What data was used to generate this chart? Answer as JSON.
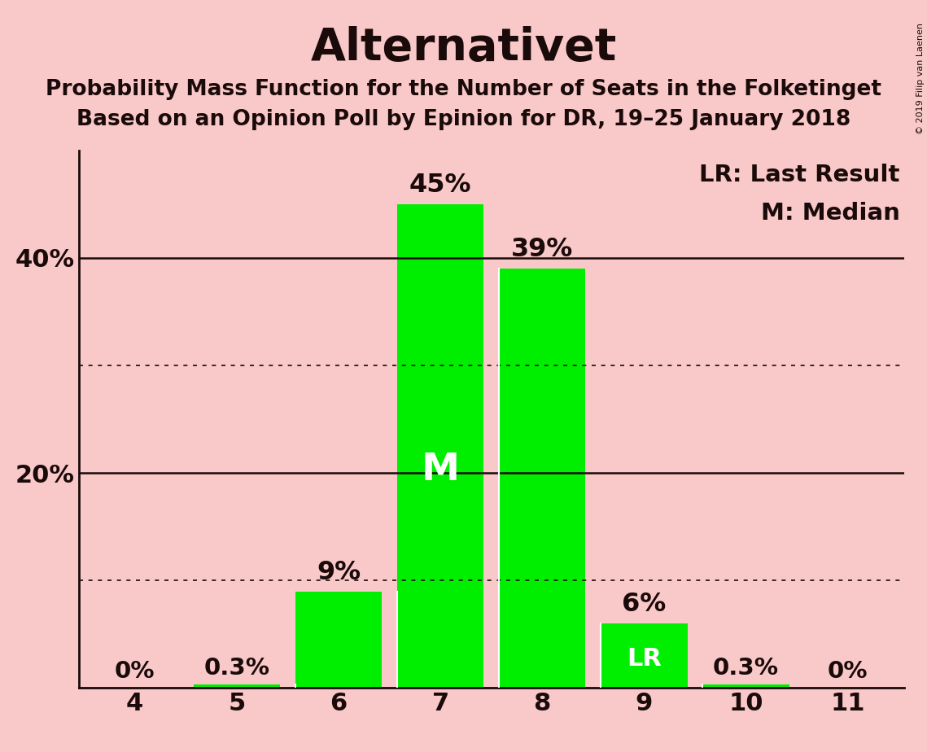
{
  "title": "Alternativet",
  "subtitle1": "Probability Mass Function for the Number of Seats in the Folketinget",
  "subtitle2": "Based on an Opinion Poll by Epinion for DR, 19–25 January 2018",
  "categories": [
    4,
    5,
    6,
    7,
    8,
    9,
    10,
    11
  ],
  "values": [
    0.0,
    0.3,
    9.0,
    45.0,
    39.0,
    6.0,
    0.3,
    0.0
  ],
  "bar_color": "#00ee00",
  "background_color": "#f9c8c8",
  "bar_labels": [
    "0%",
    "0.3%",
    "9%",
    "45%",
    "39%",
    "6%",
    "0.3%",
    "0%"
  ],
  "median_bar_index": 3,
  "lr_bar_index": 5,
  "legend_lr": "LR: Last Result",
  "legend_m": "M: Median",
  "solid_gridlines": [
    20.0,
    40.0
  ],
  "dotted_gridlines": [
    10.0,
    30.0
  ],
  "ylim": [
    0,
    50
  ],
  "watermark": "© 2019 Filip van Laenen",
  "text_color": "#1a0a0a"
}
